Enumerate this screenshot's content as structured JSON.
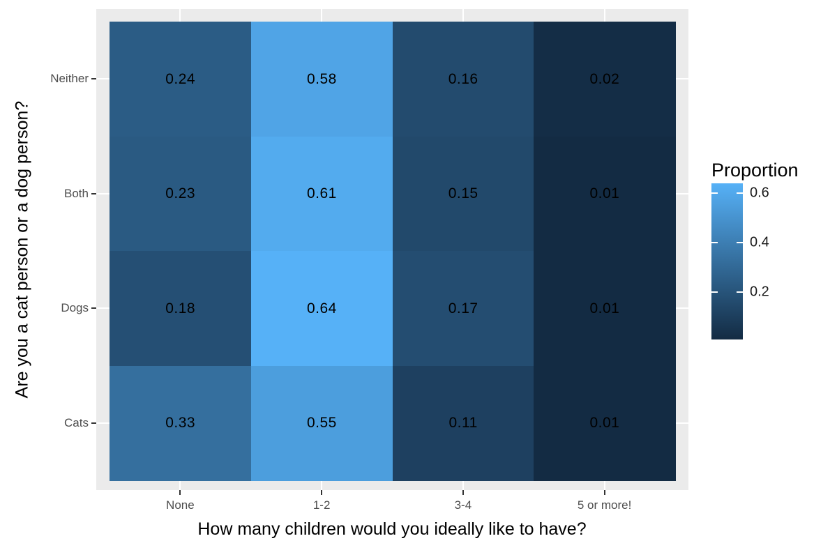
{
  "chart_data": {
    "type": "heatmap",
    "title": "",
    "xlabel": "How many children would you ideally like to have?",
    "ylabel": "Are you a cat person or a dog person?",
    "x_categories": [
      "None",
      "1-2",
      "3-4",
      "5 or more!"
    ],
    "y_categories": [
      "Neither",
      "Both",
      "Dogs",
      "Cats"
    ],
    "series": [
      {
        "name": "Neither",
        "values": [
          0.24,
          0.58,
          0.16,
          0.02
        ]
      },
      {
        "name": "Both",
        "values": [
          0.23,
          0.61,
          0.15,
          0.01
        ]
      },
      {
        "name": "Dogs",
        "values": [
          0.18,
          0.64,
          0.17,
          0.01
        ]
      },
      {
        "name": "Cats",
        "values": [
          0.33,
          0.55,
          0.11,
          0.01
        ]
      }
    ],
    "legend": {
      "title": "Proportion",
      "position": "right",
      "tick_labels": [
        "0.6",
        "0.4",
        "0.2"
      ],
      "tick_values": [
        0.6,
        0.4,
        0.2
      ],
      "domain": [
        0.01,
        0.64
      ]
    },
    "grid": "on",
    "colors": {
      "gradient_low": "#132B43",
      "gradient_high": "#56B1F7",
      "panel_background": "#EBEBEB",
      "gridline": "#FFFFFF",
      "axis_text": "#4D4D4D",
      "tick_mark": "#333333",
      "label_text": "#000000"
    }
  }
}
